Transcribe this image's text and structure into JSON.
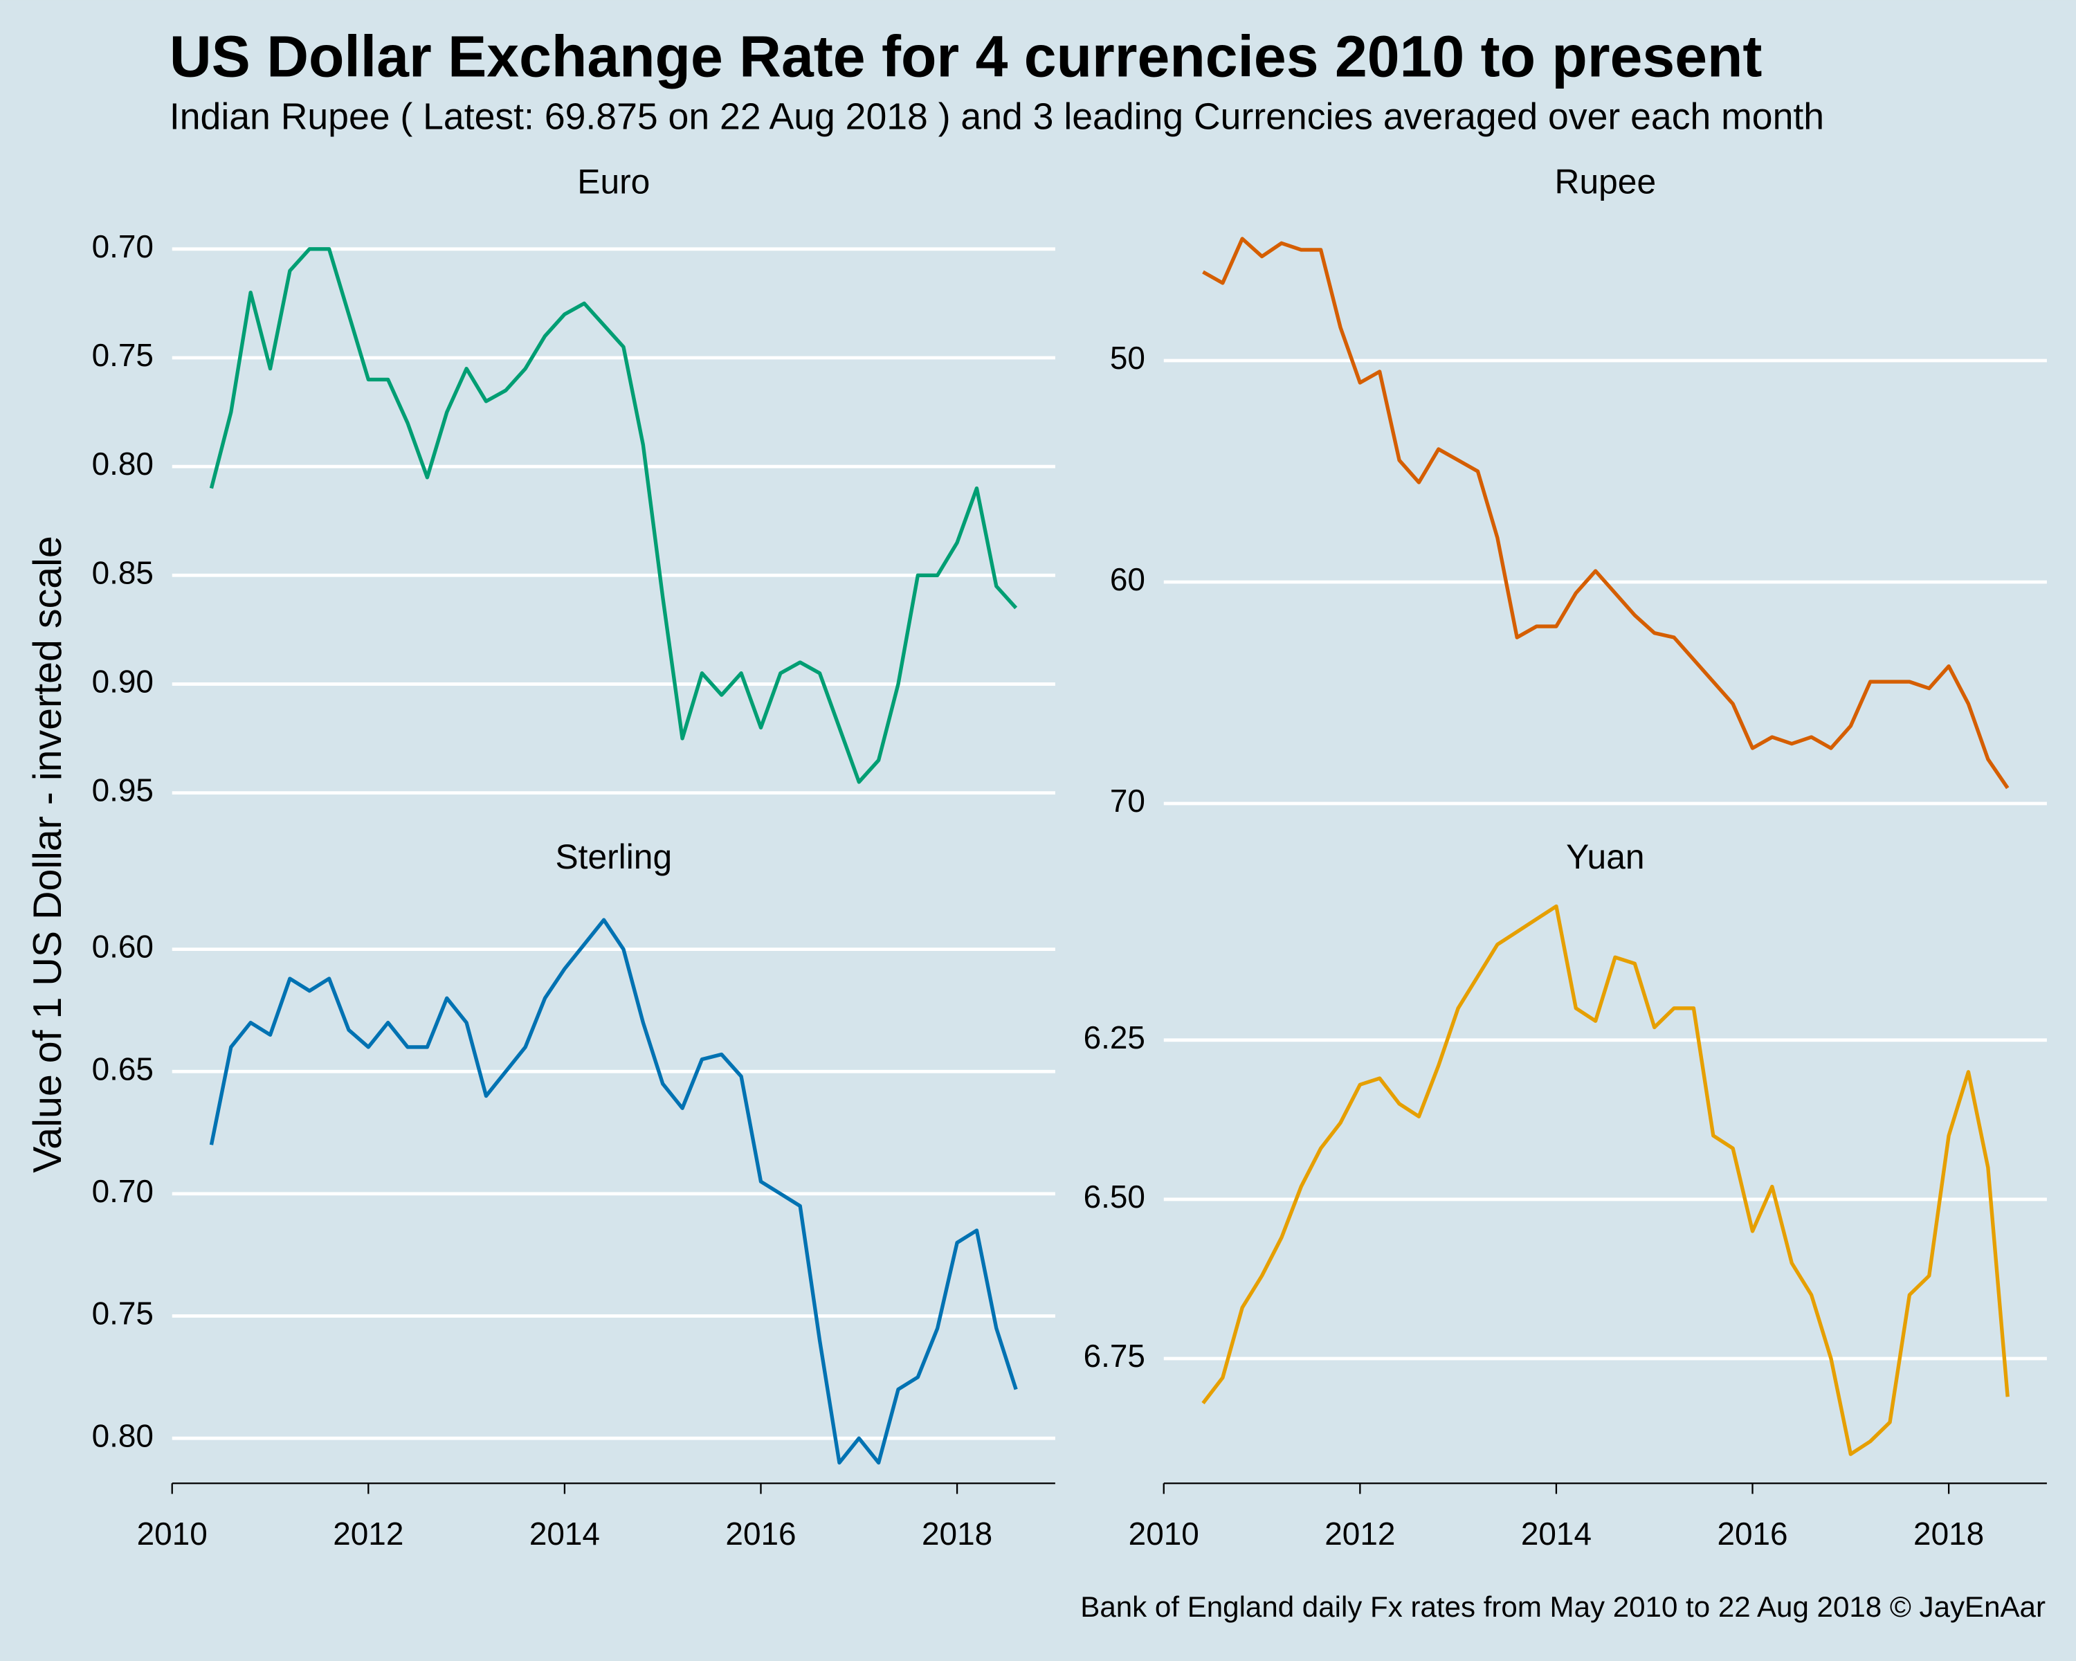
{
  "title": "US Dollar Exchange Rate for 4 currencies 2010 to present",
  "subtitle": "Indian Rupee ( Latest: 69.875 on 22 Aug 2018 ) and 3 leading Currencies averaged over each month",
  "ylabel": "Value of 1 US Dollar - inverted scale",
  "caption": "Bank of England daily Fx rates from May 2010 to 22 Aug 2018   © JayEnAar",
  "chart_data": [
    {
      "type": "line",
      "title": "Euro",
      "color": "#009e73",
      "inverted": true,
      "grid": true,
      "xlim": [
        2010,
        2019
      ],
      "ylim": [
        0.68,
        0.96
      ],
      "yticks": [
        {
          "value": 0.7,
          "label": "0.70"
        },
        0.75,
        {
          "value": 0.8,
          "label": "0.80"
        },
        0.85,
        {
          "value": 0.9,
          "label": "0.90"
        },
        0.95
      ],
      "x": [
        2010.4,
        2010.6,
        2010.8,
        2011.0,
        2011.2,
        2011.4,
        2011.6,
        2011.8,
        2012.0,
        2012.2,
        2012.4,
        2012.6,
        2012.8,
        2013.0,
        2013.2,
        2013.4,
        2013.6,
        2013.8,
        2014.0,
        2014.2,
        2014.4,
        2014.6,
        2014.8,
        2015.0,
        2015.2,
        2015.4,
        2015.6,
        2015.8,
        2016.0,
        2016.2,
        2016.4,
        2016.6,
        2016.8,
        2017.0,
        2017.2,
        2017.4,
        2017.6,
        2017.8,
        2018.0,
        2018.2,
        2018.4,
        2018.6
      ],
      "values": [
        0.81,
        0.775,
        0.72,
        0.755,
        0.71,
        0.7,
        0.7,
        0.73,
        0.76,
        0.76,
        0.78,
        0.805,
        0.775,
        0.755,
        0.77,
        0.765,
        0.755,
        0.74,
        0.73,
        0.725,
        0.735,
        0.745,
        0.79,
        0.86,
        0.925,
        0.895,
        0.905,
        0.895,
        0.92,
        0.895,
        0.89,
        0.895,
        0.92,
        0.945,
        0.935,
        0.9,
        0.85,
        0.85,
        0.835,
        0.81,
        0.855,
        0.865
      ]
    },
    {
      "type": "line",
      "title": "Rupee",
      "color": "#d55e00",
      "inverted": true,
      "grid": true,
      "xlim": [
        2010,
        2019
      ],
      "ylim": [
        43,
        70.5
      ],
      "yticks": [
        50,
        60,
        70
      ],
      "x": [
        2010.4,
        2010.6,
        2010.8,
        2011.0,
        2011.2,
        2011.4,
        2011.6,
        2011.8,
        2012.0,
        2012.2,
        2012.4,
        2012.6,
        2012.8,
        2013.0,
        2013.2,
        2013.4,
        2013.6,
        2013.8,
        2014.0,
        2014.2,
        2014.4,
        2014.6,
        2014.8,
        2015.0,
        2015.2,
        2015.4,
        2015.6,
        2015.8,
        2016.0,
        2016.2,
        2016.4,
        2016.6,
        2016.8,
        2017.0,
        2017.2,
        2017.4,
        2017.6,
        2017.8,
        2018.0,
        2018.2,
        2018.4,
        2018.6
      ],
      "values": [
        46,
        46.5,
        44.5,
        45.3,
        44.7,
        45,
        45,
        48.5,
        51,
        50.5,
        54.5,
        55.5,
        54,
        54.5,
        55,
        58,
        62.5,
        62,
        62,
        60.5,
        59.5,
        60.5,
        61.5,
        62.3,
        62.5,
        63.5,
        64.5,
        65.5,
        67.5,
        67,
        67.3,
        67,
        67.5,
        66.5,
        64.5,
        64.5,
        64.5,
        64.8,
        63.8,
        65.5,
        68,
        69.3
      ]
    },
    {
      "type": "line",
      "title": "Sterling",
      "color": "#0072b2",
      "inverted": true,
      "grid": true,
      "xlim": [
        2010,
        2019
      ],
      "ylim": [
        0.572,
        0.813
      ],
      "yticks": [
        {
          "value": 0.6,
          "label": "0.60"
        },
        0.65,
        {
          "value": 0.7,
          "label": "0.70"
        },
        0.75,
        {
          "value": 0.8,
          "label": "0.80"
        }
      ],
      "xticks": [
        2010,
        2012,
        2014,
        2016,
        2018
      ],
      "x": [
        2010.4,
        2010.6,
        2010.8,
        2011.0,
        2011.2,
        2011.4,
        2011.6,
        2011.8,
        2012.0,
        2012.2,
        2012.4,
        2012.6,
        2012.8,
        2013.0,
        2013.2,
        2013.4,
        2013.6,
        2013.8,
        2014.0,
        2014.2,
        2014.4,
        2014.6,
        2014.8,
        2015.0,
        2015.2,
        2015.4,
        2015.6,
        2015.8,
        2016.0,
        2016.2,
        2016.4,
        2016.6,
        2016.8,
        2017.0,
        2017.2,
        2017.4,
        2017.6,
        2017.8,
        2018.0,
        2018.2,
        2018.4,
        2018.6
      ],
      "values": [
        0.68,
        0.64,
        0.63,
        0.635,
        0.612,
        0.617,
        0.612,
        0.633,
        0.64,
        0.63,
        0.64,
        0.64,
        0.62,
        0.63,
        0.66,
        0.65,
        0.64,
        0.62,
        0.608,
        0.598,
        0.588,
        0.6,
        0.63,
        0.655,
        0.665,
        0.645,
        0.643,
        0.652,
        0.695,
        0.7,
        0.705,
        0.76,
        0.81,
        0.8,
        0.81,
        0.78,
        0.775,
        0.755,
        0.72,
        0.715,
        0.755,
        0.78
      ]
    },
    {
      "type": "line",
      "title": "Yuan",
      "color": "#e69f00",
      "inverted": true,
      "grid": true,
      "xlim": [
        2010,
        2019
      ],
      "ylim": [
        6.0,
        6.925
      ],
      "yticks": [
        6.25,
        {
          "value": 6.5,
          "label": "6.50"
        },
        6.75
      ],
      "xticks": [
        2010,
        2012,
        2014,
        2016,
        2018
      ],
      "x": [
        2010.4,
        2010.6,
        2010.8,
        2011.0,
        2011.2,
        2011.4,
        2011.6,
        2011.8,
        2012.0,
        2012.2,
        2012.4,
        2012.6,
        2012.8,
        2013.0,
        2013.2,
        2013.4,
        2013.6,
        2013.8,
        2014.0,
        2014.2,
        2014.4,
        2014.6,
        2014.8,
        2015.0,
        2015.2,
        2015.4,
        2015.6,
        2015.8,
        2016.0,
        2016.2,
        2016.4,
        2016.6,
        2016.8,
        2017.0,
        2017.2,
        2017.4,
        2017.6,
        2017.8,
        2018.0,
        2018.2,
        2018.4,
        2018.6
      ],
      "values": [
        6.82,
        6.78,
        6.67,
        6.62,
        6.56,
        6.48,
        6.42,
        6.38,
        6.32,
        6.31,
        6.35,
        6.37,
        6.29,
        6.2,
        6.15,
        6.1,
        6.08,
        6.06,
        6.04,
        6.2,
        6.22,
        6.12,
        6.13,
        6.23,
        6.2,
        6.2,
        6.4,
        6.42,
        6.55,
        6.48,
        6.6,
        6.65,
        6.75,
        6.9,
        6.88,
        6.85,
        6.65,
        6.62,
        6.4,
        6.3,
        6.45,
        6.81
      ]
    }
  ]
}
